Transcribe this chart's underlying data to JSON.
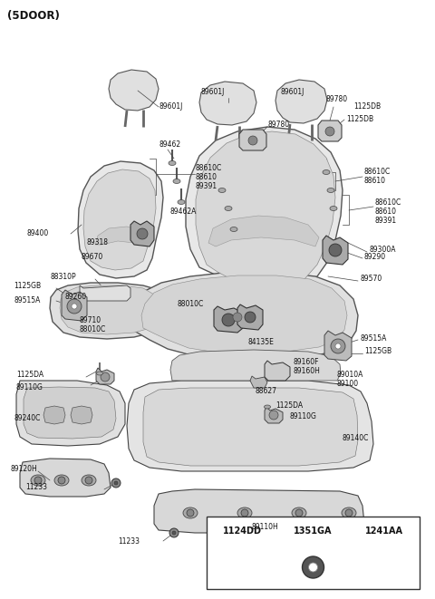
{
  "title": "(5DOOR)",
  "bg_color": "#ffffff",
  "fig_w": 4.8,
  "fig_h": 6.61,
  "dpi": 100,
  "font_size_label": 5.5,
  "font_size_title": 8.5,
  "table_cols": [
    "1124DD",
    "1351GA",
    "1241AA"
  ],
  "parts_color": "#c8c8c8",
  "line_color": "#444444",
  "outline_color": "#333333"
}
